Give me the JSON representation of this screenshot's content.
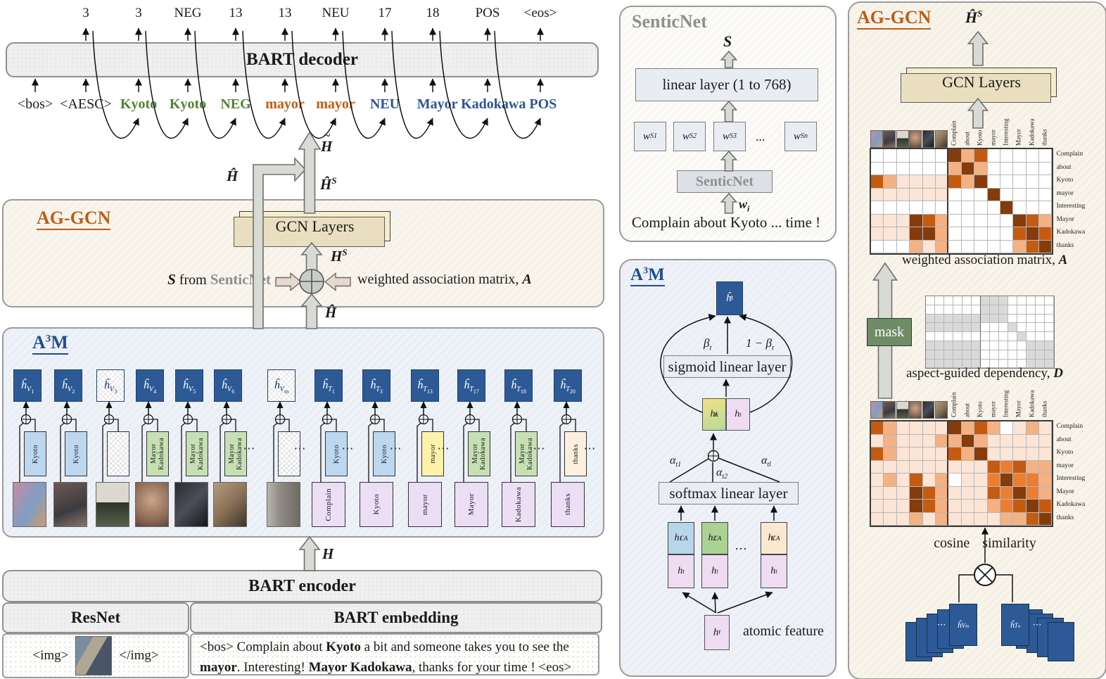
{
  "colors": {
    "accent_green": "#538135",
    "accent_orange": "#C55A11",
    "accent_blue": "#2F5496",
    "dark_state_box": "#2d5a97",
    "mask_green": "#6e8c66",
    "gcn_tan": "#f6ecca",
    "matrix_palette": [
      "#ffffff",
      "#fbe5d6",
      "#f4b183",
      "#ed7d31",
      "#c55a11",
      "#843c0c"
    ],
    "dependency_gray": "#d9d9d9"
  },
  "decoder": {
    "box_label": "BART decoder",
    "outputs": [
      "3",
      "3",
      "NEG",
      "13",
      "13",
      "NEU",
      "17",
      "18",
      "POS",
      "<eos>"
    ],
    "inputs": [
      {
        "text": "<bos>",
        "color": "black"
      },
      {
        "text": "<AESC>",
        "color": "black"
      },
      {
        "text": "Kyoto",
        "color": "green"
      },
      {
        "text": "Kyoto",
        "color": "green"
      },
      {
        "text": "NEG",
        "color": "green"
      },
      {
        "text": "mayor",
        "color": "orange"
      },
      {
        "text": "mayor",
        "color": "orange"
      },
      {
        "text": "NEU",
        "color": "blue"
      },
      {
        "text": "Mayor Kadokawa POS",
        "color": "blue"
      }
    ]
  },
  "aggcn_left": {
    "title": "AG-GCN",
    "gcn_label": "GCN Layers",
    "h_tilde_base": "H",
    "h_tilde_acc": "~",
    "h_hat": "Ĥ",
    "h_hat_mid": "Ĥ",
    "hhs_base": "Ĥ",
    "hhs_sup": "S",
    "hs_base": "H",
    "hs_sup": "S",
    "s_var": "S",
    "from_text": "from",
    "sentic_text": "SenticNet",
    "weighted_text": "weighted association matrix,",
    "weighted_var": "A"
  },
  "a3m_left": {
    "title": "A",
    "title_sup": "3",
    "title_end": "M",
    "dots": "⋯",
    "h_label": "H",
    "columns": [
      {
        "var": "V",
        "idx": "1",
        "mid": "Kyoto",
        "mid_color": "blue",
        "bottom_type": "image",
        "bottom": "photo-painting",
        "filled": true
      },
      {
        "var": "V",
        "idx": "2",
        "mid": "Kyoto",
        "mid_color": "blue",
        "bottom_type": "image",
        "bottom": "photo-artwork",
        "filled": true
      },
      {
        "var": "V",
        "idx": "3",
        "mid": "",
        "mid_color": "empty",
        "bottom_type": "image",
        "bottom": "photo-sign",
        "filled": false
      },
      {
        "var": "V",
        "idx": "4",
        "mid": "Mayor Kadokawa",
        "mid_color": "green",
        "bottom_type": "image",
        "bottom": "photo-face",
        "filled": true
      },
      {
        "var": "V",
        "idx": "5",
        "mid": "Mayor Kadokawa",
        "mid_color": "green",
        "bottom_type": "image",
        "bottom": "photo-suit",
        "filled": true
      },
      {
        "var": "V",
        "idx": "6",
        "mid": "Mayor Kadokawa",
        "mid_color": "green",
        "bottom_type": "image",
        "bottom": "photo-hand",
        "filled": true
      },
      {
        "var": "V",
        "idx": "m",
        "mid": "",
        "mid_color": "empty",
        "bottom_type": "image",
        "bottom": "photo-door",
        "filled": false
      },
      {
        "var": "T",
        "idx": "1",
        "mid": "Kyoto",
        "mid_color": "blue",
        "bottom_type": "token",
        "bottom": "Complain",
        "filled": true
      },
      {
        "var": "T",
        "idx": "3",
        "mid": "Kyoto",
        "mid_color": "blue",
        "bottom_type": "token",
        "bottom": "Kyoto",
        "filled": true
      },
      {
        "var": "T",
        "idx": "13",
        "mid": "mayor",
        "mid_color": "yellow",
        "bottom_type": "token",
        "bottom": "mayor",
        "filled": true
      },
      {
        "var": "T",
        "idx": "17",
        "mid": "Mayor Kadokawa",
        "mid_color": "green",
        "bottom_type": "token",
        "bottom": "Mayor",
        "filled": true
      },
      {
        "var": "T",
        "idx": "18",
        "mid": "Mayor Kadokawa",
        "mid_color": "green",
        "bottom_type": "token",
        "bottom": "Kadokawa",
        "filled": true
      },
      {
        "var": "T",
        "idx": "20",
        "mid": "thanks",
        "mid_color": "cream",
        "bottom_type": "token",
        "bottom": "thanks",
        "filled": true
      }
    ]
  },
  "encoder": {
    "label": "BART encoder",
    "resnet": "ResNet",
    "embedding": "BART embedding",
    "img_open": "<img>",
    "img_close": "</img>",
    "photo": "photo-two-people",
    "sentence": [
      {
        "t": "<bos> Complain about ",
        "b": false
      },
      {
        "t": "Kyoto",
        "b": true
      },
      {
        "t": " a bit and someone takes you to see the ",
        "b": false
      },
      {
        "t": "mayor",
        "b": true
      },
      {
        "t": ". Interesting! ",
        "b": false
      },
      {
        "t": "Mayor Kadokawa",
        "b": true
      },
      {
        "t": ", thanks for your time ! <eos>",
        "b": false
      }
    ]
  },
  "senticnet_panel": {
    "title": "SenticNet",
    "s_label": "S",
    "linear_label": "linear layer (1 to 768)",
    "w_base": "w",
    "w_sup": "S",
    "w_indices": [
      "1",
      "2",
      "3"
    ],
    "w_last": "n",
    "dots": "...",
    "box_label": "SenticNet",
    "wi_base": "w",
    "wi_sub": "i",
    "sentence": "Complain about Kyoto ... time !"
  },
  "a3m_panel": {
    "title": "A",
    "title_sup": "3",
    "title_end": "M",
    "ht_hat_base": "ĥ",
    "ht_hat_sub": "t",
    "beta_base": "β",
    "beta_sub": "t",
    "one_minus": "1 − ",
    "sigmoid_label": "sigmoid linear layer",
    "hta_base": "h",
    "hta_sup": "A",
    "hta_sub": "t",
    "ht_base": "h",
    "ht_sub": "t",
    "alpha1_base": "α",
    "alpha1_sub": "t1",
    "alpha2_base": "α",
    "alpha2_sub": "t2",
    "alphal_base": "α",
    "alphal_sub": "tl",
    "softmax_label": "softmax linear layer",
    "stacks": [
      {
        "sup": "CA",
        "sub": "1"
      },
      {
        "sup": "CA",
        "sub": "2"
      },
      {
        "sup": "CA",
        "sub": "l"
      }
    ],
    "dots": "⋯",
    "atomic_label": "atomic feature"
  },
  "aggcn_right": {
    "title": "AG-GCN",
    "hhs_base": "Ĥ",
    "hhs_sup": "S",
    "gcn_label": "GCN Layers",
    "mask_label": "mask",
    "caption_a_text": "weighted association matrix,",
    "caption_a_var": "A",
    "caption_d_text": "aspect-guided dependency,",
    "caption_d_var": "D",
    "cosine_left": "cosine",
    "cosine_right": "similarity",
    "dots": "⋯",
    "stack_v": {
      "base": "ĥ",
      "sub": "V",
      "idx": "m"
    },
    "stack_t": {
      "base": "ĥ",
      "sub": "T",
      "idx": "n"
    },
    "matrix_labels": [
      "Complain",
      "about",
      "Kyoto",
      "mayor",
      "Interesting",
      "Mayor",
      "Kadokawa",
      "thanks"
    ],
    "thumbs": [
      "photo-painting",
      "photo-artwork",
      "photo-sign",
      "photo-face",
      "photo-suit",
      "photo-hand"
    ],
    "matrix_a": [
      [
        0,
        0,
        0,
        0,
        0,
        0,
        5,
        2,
        4,
        0,
        0,
        0,
        0,
        0
      ],
      [
        0,
        0,
        0,
        0,
        0,
        0,
        2,
        5,
        2,
        0,
        0,
        0,
        0,
        0
      ],
      [
        4,
        2,
        1,
        1,
        1,
        1,
        4,
        2,
        5,
        0,
        0,
        0,
        0,
        0
      ],
      [
        1,
        1,
        1,
        1,
        1,
        1,
        0,
        0,
        0,
        5,
        0,
        0,
        0,
        0
      ],
      [
        0,
        0,
        0,
        0,
        0,
        0,
        0,
        0,
        0,
        0,
        5,
        0,
        0,
        0
      ],
      [
        1,
        1,
        1,
        5,
        4,
        2,
        0,
        0,
        0,
        0,
        0,
        5,
        4,
        2
      ],
      [
        1,
        1,
        1,
        5,
        5,
        2,
        0,
        0,
        0,
        0,
        0,
        4,
        5,
        4
      ],
      [
        0,
        0,
        0,
        2,
        1,
        2,
        0,
        0,
        0,
        0,
        0,
        2,
        4,
        5
      ]
    ],
    "matrix_d": [
      [
        0,
        0,
        0,
        0,
        0,
        0,
        1,
        1,
        1,
        0,
        0,
        0,
        0,
        0
      ],
      [
        0,
        0,
        0,
        0,
        0,
        0,
        1,
        1,
        1,
        0,
        0,
        0,
        0,
        0
      ],
      [
        1,
        1,
        1,
        1,
        1,
        1,
        1,
        1,
        1,
        0,
        0,
        0,
        0,
        0
      ],
      [
        1,
        1,
        1,
        1,
        1,
        1,
        0,
        0,
        0,
        1,
        0,
        0,
        0,
        0
      ],
      [
        0,
        0,
        0,
        0,
        0,
        0,
        0,
        0,
        0,
        0,
        1,
        0,
        0,
        0
      ],
      [
        1,
        1,
        1,
        1,
        1,
        1,
        0,
        0,
        0,
        0,
        0,
        1,
        1,
        1
      ],
      [
        1,
        1,
        1,
        1,
        1,
        1,
        0,
        0,
        0,
        0,
        0,
        1,
        1,
        1
      ],
      [
        1,
        1,
        1,
        1,
        1,
        1,
        0,
        0,
        0,
        0,
        0,
        1,
        1,
        1
      ]
    ],
    "matrix_cos": [
      [
        4,
        2,
        1,
        1,
        1,
        1,
        5,
        2,
        4,
        2,
        0,
        1,
        2,
        1
      ],
      [
        1,
        2,
        1,
        1,
        1,
        2,
        2,
        5,
        2,
        1,
        1,
        1,
        1,
        1
      ],
      [
        4,
        2,
        1,
        1,
        1,
        1,
        4,
        2,
        5,
        1,
        1,
        1,
        1,
        1
      ],
      [
        1,
        1,
        1,
        1,
        1,
        1,
        1,
        1,
        1,
        4,
        3,
        4,
        2,
        2
      ],
      [
        1,
        2,
        1,
        4,
        1,
        2,
        0,
        1,
        1,
        3,
        5,
        3,
        3,
        2
      ],
      [
        1,
        1,
        1,
        5,
        4,
        2,
        1,
        1,
        1,
        4,
        3,
        5,
        3,
        2
      ],
      [
        1,
        1,
        1,
        5,
        4,
        2,
        1,
        1,
        1,
        2,
        3,
        4,
        5,
        4
      ],
      [
        1,
        1,
        1,
        2,
        1,
        2,
        1,
        1,
        1,
        1,
        2,
        2,
        4,
        5
      ]
    ]
  }
}
